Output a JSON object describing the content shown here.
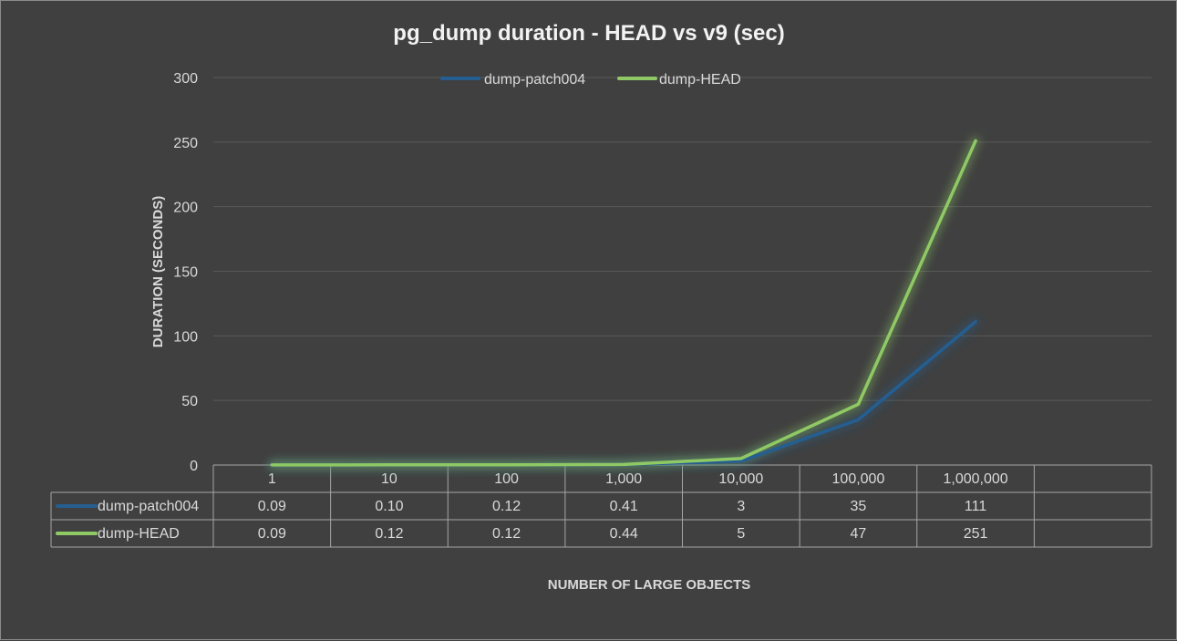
{
  "chart_data": {
    "type": "line",
    "title": "pg_dump duration - HEAD  vs  v9 (sec)",
    "xlabel": "NUMBER OF LARGE OBJECTS",
    "ylabel": "DURATION (SECONDS)",
    "categories": [
      "1",
      "10",
      "100",
      "1,000",
      "10,000",
      "100,000",
      "1,000,000"
    ],
    "ylim": [
      0,
      300
    ],
    "yticks": [
      0,
      50,
      100,
      150,
      200,
      250,
      300
    ],
    "grid": true,
    "legend_position": "top",
    "data_table": true,
    "series": [
      {
        "name": "dump-patch004",
        "color": "#255e91",
        "values": [
          0.09,
          0.1,
          0.12,
          0.41,
          3,
          35,
          111
        ],
        "labels": [
          "0.09",
          "0.10",
          "0.12",
          "0.41",
          "3",
          "35",
          "111"
        ]
      },
      {
        "name": "dump-HEAD",
        "color": "#8fc965",
        "values": [
          0.09,
          0.12,
          0.12,
          0.44,
          5,
          47,
          251
        ],
        "labels": [
          "0.09",
          "0.12",
          "0.12",
          "0.44",
          "5",
          "47",
          "251"
        ]
      }
    ]
  }
}
